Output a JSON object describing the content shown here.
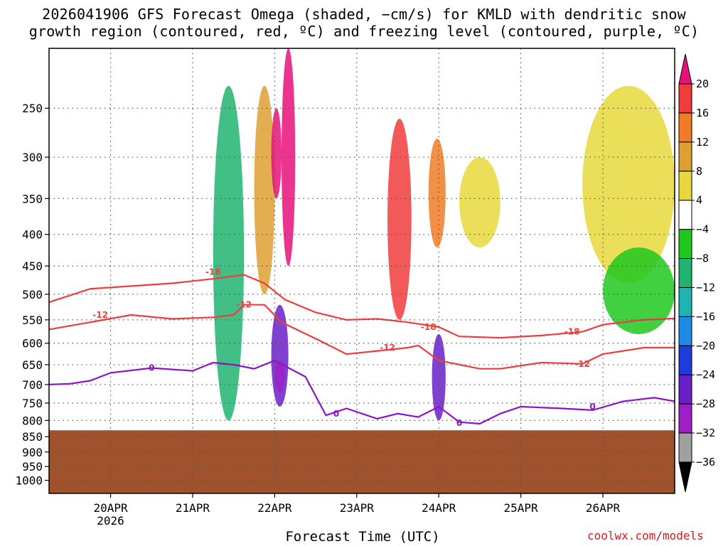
{
  "title_line1": "2026041906 GFS Forecast Omega (shaded, −cm/s) for KMLD with dendritic snow",
  "title_line2": "growth region (contoured, red, ºC) and freezing level (contoured, purple, ºC)",
  "xlabel": "Forecast Time (UTC)",
  "credit": "coolwx.com/models",
  "chart_data": {
    "type": "heatmap",
    "title": "2026041906 GFS Forecast Omega (shaded, −cm/s) for KMLD with dendritic snow growth region (contoured, red, ºC) and freezing level (contoured, purple, ºC)",
    "xlabel": "Forecast Time (UTC)",
    "ylabel": "",
    "y_axis": {
      "scale": "log",
      "inverted": true,
      "ticks": [
        250,
        300,
        350,
        400,
        450,
        500,
        550,
        600,
        650,
        700,
        750,
        800,
        850,
        900,
        950,
        1000
      ],
      "range": [
        1050,
        200
      ]
    },
    "x_axis": {
      "range": [
        "2026-04-19T06",
        "2026-04-26T21"
      ],
      "ticks": [
        {
          "time": "2026-04-20T00",
          "label": "20APR",
          "sublabel": "2026"
        },
        {
          "time": "2026-04-21T00",
          "label": "21APR"
        },
        {
          "time": "2026-04-22T00",
          "label": "22APR"
        },
        {
          "time": "2026-04-23T00",
          "label": "23APR"
        },
        {
          "time": "2026-04-24T00",
          "label": "24APR"
        },
        {
          "time": "2026-04-25T00",
          "label": "25APR"
        },
        {
          "time": "2026-04-26T00",
          "label": "26APR"
        }
      ]
    },
    "grid": true,
    "colorbar": {
      "levels": [
        20,
        16,
        12,
        8,
        4,
        -4,
        -8,
        -12,
        -16,
        -20,
        -24,
        -28,
        -32,
        -36
      ],
      "colors": [
        "#e8107a",
        "#f03c3c",
        "#f07c28",
        "#dea030",
        "#e8d83c",
        "#ffffff",
        "#1ec81e",
        "#20b46e",
        "#1eb4b4",
        "#1e8ce6",
        "#1e3cdc",
        "#6a1ec8",
        "#a01ec8",
        "#a0a0a0",
        "#000000"
      ]
    },
    "ground": {
      "top_pressure": 830,
      "color": "#a0522d"
    },
    "omega_features": [
      {
        "t": [
          "2026-04-21T06",
          "2026-04-21T15"
        ],
        "p": [
          230,
          800
        ],
        "level": -12
      },
      {
        "t": [
          "2026-04-21T18",
          "2026-04-22T00"
        ],
        "p": [
          230,
          500
        ],
        "level": 8
      },
      {
        "t": [
          "2026-04-21T23",
          "2026-04-22T02"
        ],
        "p": [
          250,
          350
        ],
        "level": 20
      },
      {
        "t": [
          "2026-04-22T02",
          "2026-04-22T06"
        ],
        "p": [
          200,
          450
        ],
        "level": 20
      },
      {
        "t": [
          "2026-04-21T23",
          "2026-04-22T04"
        ],
        "p": [
          520,
          760
        ],
        "level": -28
      },
      {
        "t": [
          "2026-04-22T00",
          "2026-04-22T03"
        ],
        "p": [
          640,
          720
        ],
        "level": -32
      },
      {
        "t": [
          "2026-04-23T09",
          "2026-04-23T16"
        ],
        "p": [
          260,
          550
        ],
        "level": 16
      },
      {
        "t": [
          "2026-04-23T21",
          "2026-04-24T02"
        ],
        "p": [
          280,
          420
        ],
        "level": 12
      },
      {
        "t": [
          "2026-04-23T22",
          "2026-04-24T02"
        ],
        "p": [
          580,
          800
        ],
        "level": -28
      },
      {
        "t": [
          "2026-04-24T06",
          "2026-04-24T18"
        ],
        "p": [
          300,
          420
        ],
        "level": 4
      },
      {
        "t": [
          "2026-04-25T18",
          "2026-04-26T21"
        ],
        "p": [
          230,
          480
        ],
        "level": 4
      },
      {
        "t": [
          "2026-04-26T00",
          "2026-04-26T21"
        ],
        "p": [
          420,
          580
        ],
        "level": -8
      }
    ],
    "series": [
      {
        "name": "-18",
        "color": "#f03c3c",
        "points": [
          [
            "2026-04-19T06",
            515
          ],
          [
            "2026-04-19T18",
            490
          ],
          [
            "2026-04-20T06",
            485
          ],
          [
            "2026-04-20T18",
            480
          ],
          [
            "2026-04-21T06",
            472
          ],
          [
            "2026-04-21T15",
            465
          ],
          [
            "2026-04-21T21",
            480
          ],
          [
            "2026-04-22T03",
            510
          ],
          [
            "2026-04-22T12",
            535
          ],
          [
            "2026-04-22T21",
            550
          ],
          [
            "2026-04-23T06",
            548
          ],
          [
            "2026-04-23T15",
            555
          ],
          [
            "2026-04-24T00",
            565
          ],
          [
            "2026-04-24T06",
            585
          ],
          [
            "2026-04-24T18",
            588
          ],
          [
            "2026-04-25T06",
            583
          ],
          [
            "2026-04-25T18",
            575
          ],
          [
            "2026-04-26T00",
            560
          ],
          [
            "2026-04-26T12",
            550
          ],
          [
            "2026-04-26T21",
            547
          ]
        ]
      },
      {
        "name": "-12",
        "color": "#f03c3c",
        "points": [
          [
            "2026-04-19T06",
            570
          ],
          [
            "2026-04-19T18",
            555
          ],
          [
            "2026-04-20T06",
            540
          ],
          [
            "2026-04-20T18",
            548
          ],
          [
            "2026-04-21T06",
            545
          ],
          [
            "2026-04-21T12",
            540
          ],
          [
            "2026-04-21T15",
            520
          ],
          [
            "2026-04-21T21",
            520
          ],
          [
            "2026-04-22T02",
            555
          ],
          [
            "2026-04-22T12",
            590
          ],
          [
            "2026-04-22T21",
            625
          ],
          [
            "2026-04-23T09",
            615
          ],
          [
            "2026-04-23T15",
            610
          ],
          [
            "2026-04-23T18",
            605
          ],
          [
            "2026-04-24T00",
            640
          ],
          [
            "2026-04-24T12",
            660
          ],
          [
            "2026-04-24T18",
            660
          ],
          [
            "2026-04-25T06",
            645
          ],
          [
            "2026-04-25T18",
            648
          ],
          [
            "2026-04-26T00",
            625
          ],
          [
            "2026-04-26T12",
            610
          ],
          [
            "2026-04-26T21",
            610
          ]
        ]
      },
      {
        "name": "0",
        "color": "#8c14c8",
        "points": [
          [
            "2026-04-19T06",
            700
          ],
          [
            "2026-04-19T12",
            698
          ],
          [
            "2026-04-19T18",
            690
          ],
          [
            "2026-04-20T00",
            670
          ],
          [
            "2026-04-20T12",
            658
          ],
          [
            "2026-04-21T00",
            665
          ],
          [
            "2026-04-21T06",
            645
          ],
          [
            "2026-04-21T12",
            650
          ],
          [
            "2026-04-21T18",
            660
          ],
          [
            "2026-04-22T00",
            640
          ],
          [
            "2026-04-22T09",
            680
          ],
          [
            "2026-04-22T15",
            785
          ],
          [
            "2026-04-22T21",
            765
          ],
          [
            "2026-04-23T06",
            795
          ],
          [
            "2026-04-23T12",
            780
          ],
          [
            "2026-04-23T18",
            790
          ],
          [
            "2026-04-24T00",
            760
          ],
          [
            "2026-04-24T06",
            805
          ],
          [
            "2026-04-24T12",
            810
          ],
          [
            "2026-04-24T18",
            780
          ],
          [
            "2026-04-25T00",
            760
          ],
          [
            "2026-04-25T12",
            765
          ],
          [
            "2026-04-25T21",
            770
          ],
          [
            "2026-04-26T06",
            745
          ],
          [
            "2026-04-26T15",
            735
          ],
          [
            "2026-04-26T21",
            745
          ]
        ]
      }
    ],
    "contour_labels": [
      {
        "text": "-18",
        "t": "2026-04-21T06",
        "p": 460,
        "color": "#f03c3c"
      },
      {
        "text": "-12",
        "t": "2026-04-19T21",
        "p": 540,
        "color": "#f03c3c"
      },
      {
        "text": "-12",
        "t": "2026-04-21T15",
        "p": 520,
        "color": "#f03c3c"
      },
      {
        "text": "-18",
        "t": "2026-04-23T21",
        "p": 565,
        "color": "#f03c3c"
      },
      {
        "text": "-12",
        "t": "2026-04-23T09",
        "p": 610,
        "color": "#f03c3c"
      },
      {
        "text": "-18",
        "t": "2026-04-25T15",
        "p": 575,
        "color": "#f03c3c"
      },
      {
        "text": "-12",
        "t": "2026-04-25T18",
        "p": 648,
        "color": "#f03c3c"
      },
      {
        "text": "0",
        "t": "2026-04-20T12",
        "p": 658,
        "color": "#8c14c8"
      },
      {
        "text": "0",
        "t": "2026-04-22T18",
        "p": 780,
        "color": "#8c14c8"
      },
      {
        "text": "0",
        "t": "2026-04-24T06",
        "p": 808,
        "color": "#8c14c8"
      },
      {
        "text": "0",
        "t": "2026-04-25T21",
        "p": 760,
        "color": "#8c14c8"
      }
    ]
  }
}
